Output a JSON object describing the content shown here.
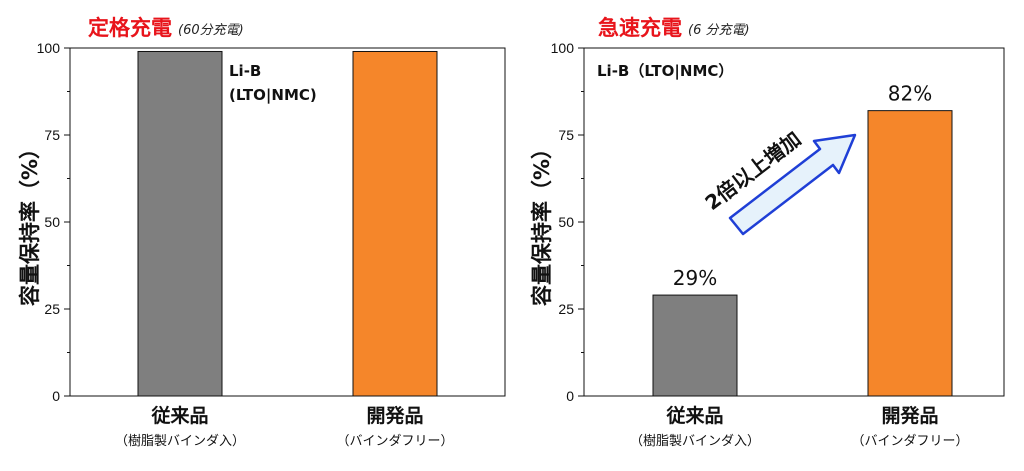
{
  "chart_data": [
    {
      "type": "bar",
      "title": "定格充電",
      "subtitle": "(60分充電)",
      "ylabel": "容量保持率（%）",
      "ylim": [
        0,
        100
      ],
      "yticks": [
        "0",
        "25",
        "50",
        "75",
        "100"
      ],
      "categories": [
        "従来品",
        "開発品"
      ],
      "category_notes": [
        "（樹脂製バインダ入）",
        "（バインダフリー）"
      ],
      "values": [
        99,
        99
      ],
      "bar_colors": [
        "#7f7f7f",
        "#f5862a"
      ],
      "annotation_lines": [
        "Li-B",
        "(LTO|NMC)"
      ]
    },
    {
      "type": "bar",
      "title": "急速充電",
      "subtitle": "(6 分充電)",
      "ylabel": "容量保持率（%）",
      "ylim": [
        0,
        100
      ],
      "yticks": [
        "0",
        "25",
        "50",
        "75",
        "100"
      ],
      "categories": [
        "従来品",
        "開発品"
      ],
      "category_notes": [
        "（樹脂製バインダ入）",
        "（バインダフリー）"
      ],
      "values": [
        29,
        82
      ],
      "data_labels": [
        "29%",
        "82%"
      ],
      "bar_colors": [
        "#7f7f7f",
        "#f5862a"
      ],
      "annotation": "Li-B（LTO|NMC）",
      "arrow_text": "2倍以上増加"
    }
  ],
  "colors": {
    "title": "#e8141b",
    "arrow_fill": "#e6f2fb",
    "arrow_stroke": "#1f3fd6"
  }
}
